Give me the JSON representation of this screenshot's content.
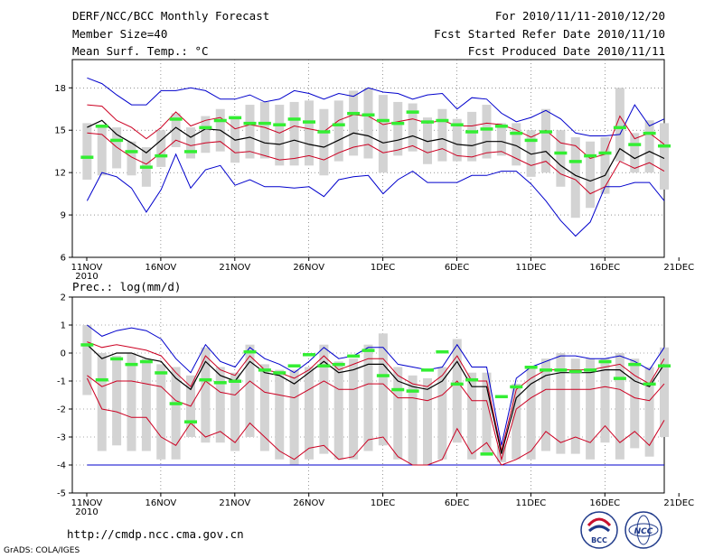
{
  "header": {
    "title": "DERF/NCC/BCC Monthly Forecast",
    "member_size": "Member Size=40",
    "variable": "Mean Surf. Temp.: °C",
    "period": "For 2010/11/11-2010/12/20",
    "started": "Fcst Started Refer Date 2010/11/10",
    "produced": "Fcst Produced Date 2010/11/11"
  },
  "precip_label": "Prec.: log(mm/d)",
  "footer": {
    "url": "http://cmdp.ncc.cma.gov.cn",
    "grads": "GrADS: COLA/IGES",
    "logo_left": "BCC",
    "logo_right": "NCC"
  },
  "colors": {
    "max_min": "#0000cc",
    "percentile": "#cc0022",
    "mean": "#000000",
    "box": "#d3d3d3",
    "obs": "#33ee33"
  },
  "x_ticks": [
    "11NOV",
    "16NOV",
    "21NOV",
    "26NOV",
    "1DEC",
    "6DEC",
    "11DEC",
    "16DEC",
    "21DEC"
  ],
  "x_year": "2010",
  "chart_data": [
    {
      "type": "line",
      "title": "Mean Surf. Temp.: °C",
      "xlabel": "",
      "ylabel": "°C",
      "ylim": [
        6,
        20
      ],
      "yticks": [
        6,
        9,
        12,
        15,
        18
      ],
      "x": [
        1,
        2,
        3,
        4,
        5,
        6,
        7,
        8,
        9,
        10,
        11,
        12,
        13,
        14,
        15,
        16,
        17,
        18,
        19,
        20,
        21,
        22,
        23,
        24,
        25,
        26,
        27,
        28,
        29,
        30,
        31,
        32,
        33,
        34,
        35,
        36,
        37,
        38,
        39,
        40
      ],
      "series": [
        {
          "name": "max",
          "values": [
            18.7,
            18.3,
            17.5,
            16.8,
            16.8,
            17.8,
            17.8,
            18.0,
            17.8,
            17.2,
            17.2,
            17.5,
            17.0,
            17.2,
            17.8,
            17.6,
            17.2,
            17.6,
            17.4,
            18.0,
            17.7,
            17.6,
            17.2,
            17.5,
            17.6,
            16.5,
            17.3,
            17.2,
            16.2,
            15.6,
            15.9,
            16.4,
            15.8,
            14.8,
            14.6,
            14.6,
            14.7,
            16.8,
            15.3,
            15.8
          ]
        },
        {
          "name": "p90",
          "values": [
            16.8,
            16.7,
            15.7,
            15.2,
            14.4,
            15.2,
            16.3,
            15.3,
            15.7,
            15.9,
            15.1,
            15.4,
            15.2,
            14.8,
            15.3,
            15.1,
            14.9,
            15.7,
            16.1,
            16.0,
            15.4,
            15.6,
            15.8,
            15.5,
            15.7,
            15.3,
            15.3,
            15.5,
            15.4,
            15.0,
            14.5,
            15.0,
            14.1,
            13.9,
            13.0,
            13.3,
            16.0,
            14.4,
            14.8,
            14.0
          ]
        },
        {
          "name": "mean",
          "values": [
            15.2,
            15.7,
            14.7,
            14.1,
            13.4,
            14.3,
            15.2,
            14.5,
            15.1,
            15.0,
            14.3,
            14.5,
            14.1,
            14.0,
            14.3,
            14.0,
            13.8,
            14.3,
            14.8,
            14.6,
            14.1,
            14.3,
            14.6,
            14.2,
            14.4,
            14.0,
            13.9,
            14.2,
            14.2,
            13.9,
            13.3,
            13.5,
            12.5,
            11.8,
            11.4,
            11.8,
            13.7,
            13.0,
            13.5,
            13.0
          ]
        },
        {
          "name": "p10",
          "values": [
            14.8,
            14.7,
            13.8,
            13.1,
            12.6,
            13.4,
            14.3,
            13.9,
            14.1,
            14.2,
            13.4,
            13.5,
            13.2,
            12.9,
            13.0,
            13.2,
            12.9,
            13.4,
            13.8,
            14.0,
            13.4,
            13.6,
            13.9,
            13.4,
            13.7,
            13.2,
            13.1,
            13.4,
            13.5,
            13.0,
            12.5,
            12.8,
            11.9,
            11.5,
            10.5,
            11.0,
            12.8,
            12.3,
            12.7,
            12.1
          ]
        },
        {
          "name": "min",
          "values": [
            10.0,
            12.0,
            11.7,
            10.9,
            9.2,
            10.8,
            13.3,
            10.9,
            12.2,
            12.5,
            11.1,
            11.5,
            11.0,
            11.0,
            10.9,
            11.0,
            10.3,
            11.5,
            11.7,
            11.8,
            10.5,
            11.5,
            12.1,
            11.3,
            11.3,
            11.3,
            11.8,
            11.8,
            12.1,
            12.1,
            11.2,
            10.0,
            8.6,
            7.5,
            8.5,
            11.0,
            11.0,
            11.3,
            11.3,
            10.0
          ]
        },
        {
          "name": "box_high",
          "values": [
            15.5,
            15.3,
            15.2,
            14.2,
            13.8,
            15.0,
            16.2,
            15.2,
            16.0,
            16.5,
            16.0,
            16.8,
            17.0,
            16.8,
            17.0,
            17.1,
            16.5,
            17.1,
            17.8,
            18.0,
            17.5,
            17.0,
            16.9,
            15.9,
            16.5,
            15.8,
            16.3,
            16.8,
            15.5,
            15.5,
            15.0,
            16.5,
            15.0,
            14.5,
            14.2,
            14.5,
            18.0,
            14.8,
            15.7,
            15.5
          ]
        },
        {
          "name": "box_low",
          "values": [
            11.5,
            11.8,
            12.3,
            11.8,
            11.0,
            12.4,
            13.8,
            13.0,
            13.4,
            13.5,
            12.7,
            13.0,
            13.0,
            12.5,
            12.5,
            12.5,
            11.8,
            12.8,
            13.2,
            13.0,
            12.0,
            13.2,
            13.5,
            12.6,
            12.8,
            12.8,
            12.8,
            13.0,
            13.2,
            12.5,
            11.7,
            12.0,
            11.0,
            8.8,
            9.5,
            10.5,
            12.8,
            12.0,
            12.0,
            10.8
          ]
        },
        {
          "name": "observed",
          "values": [
            13.1,
            15.3,
            14.3,
            13.5,
            12.4,
            13.2,
            15.8,
            13.5,
            15.2,
            15.7,
            15.9,
            15.5,
            15.5,
            15.4,
            15.8,
            15.6,
            14.9,
            15.4,
            16.2,
            16.1,
            15.7,
            15.5,
            16.3,
            15.6,
            15.7,
            15.4,
            14.9,
            15.1,
            15.3,
            14.8,
            14.3,
            14.9,
            13.4,
            12.8,
            13.2,
            13.4,
            15.2,
            14.0,
            14.8,
            13.9
          ]
        }
      ]
    },
    {
      "type": "line",
      "title": "Prec.: log(mm/d)",
      "xlabel": "",
      "ylabel": "log(mm/d)",
      "ylim": [
        -5,
        2
      ],
      "yticks": [
        -5,
        -4,
        -3,
        -2,
        -1,
        0,
        1,
        2
      ],
      "x": [
        1,
        2,
        3,
        4,
        5,
        6,
        7,
        8,
        9,
        10,
        11,
        12,
        13,
        14,
        15,
        16,
        17,
        18,
        19,
        20,
        21,
        22,
        23,
        24,
        25,
        26,
        27,
        28,
        29,
        30,
        31,
        32,
        33,
        34,
        35,
        36,
        37,
        38,
        39,
        40
      ],
      "series": [
        {
          "name": "max",
          "values": [
            1.0,
            0.6,
            0.8,
            0.9,
            0.8,
            0.5,
            -0.2,
            -0.7,
            0.3,
            -0.3,
            -0.5,
            0.2,
            -0.2,
            -0.4,
            -0.7,
            -0.3,
            0.2,
            -0.2,
            -0.1,
            0.2,
            0.2,
            -0.4,
            -0.5,
            -0.6,
            -0.5,
            0.3,
            -0.5,
            -0.5,
            -3.3,
            -0.9,
            -0.5,
            -0.3,
            -0.1,
            -0.1,
            -0.2,
            -0.2,
            -0.1,
            -0.3,
            -0.6,
            0.2
          ]
        },
        {
          "name": "p90",
          "values": [
            0.4,
            0.2,
            0.3,
            0.2,
            0.1,
            -0.1,
            -0.7,
            -1.2,
            -0.1,
            -0.6,
            -0.8,
            -0.1,
            -0.6,
            -0.7,
            -0.9,
            -0.6,
            -0.1,
            -0.6,
            -0.4,
            -0.2,
            -0.2,
            -0.8,
            -1.1,
            -1.2,
            -0.8,
            -0.1,
            -1.0,
            -1.0,
            -3.5,
            -1.3,
            -0.9,
            -0.6,
            -0.6,
            -0.6,
            -0.6,
            -0.5,
            -0.4,
            -0.8,
            -1.1,
            -0.2
          ]
        },
        {
          "name": "mean",
          "values": [
            0.3,
            -0.2,
            0.0,
            0.0,
            -0.2,
            -0.3,
            -0.9,
            -1.3,
            -0.3,
            -0.8,
            -1.0,
            -0.3,
            -0.7,
            -0.8,
            -1.1,
            -0.7,
            -0.3,
            -0.7,
            -0.6,
            -0.4,
            -0.4,
            -1.0,
            -1.2,
            -1.3,
            -1.0,
            -0.3,
            -1.2,
            -1.2,
            -3.6,
            -1.6,
            -1.1,
            -0.8,
            -0.7,
            -0.7,
            -0.7,
            -0.6,
            -0.6,
            -1.0,
            -1.2,
            -0.4
          ]
        },
        {
          "name": "p10",
          "values": [
            -0.8,
            -1.2,
            -1.0,
            -1.0,
            -1.1,
            -1.2,
            -1.7,
            -1.9,
            -1.0,
            -1.4,
            -1.5,
            -1.0,
            -1.4,
            -1.5,
            -1.6,
            -1.3,
            -1.0,
            -1.3,
            -1.3,
            -1.1,
            -1.1,
            -1.6,
            -1.6,
            -1.7,
            -1.5,
            -1.0,
            -1.7,
            -1.7,
            -3.8,
            -2.0,
            -1.6,
            -1.3,
            -1.3,
            -1.3,
            -1.3,
            -1.2,
            -1.3,
            -1.6,
            -1.7,
            -1.1
          ]
        },
        {
          "name": "min",
          "values": [
            -0.9,
            -2.0,
            -2.1,
            -2.3,
            -2.3,
            -3.0,
            -3.3,
            -2.5,
            -3.0,
            -2.8,
            -3.2,
            -2.5,
            -3.0,
            -3.5,
            -3.8,
            -3.4,
            -3.3,
            -3.8,
            -3.7,
            -3.1,
            -3.0,
            -3.7,
            -4.0,
            -4.0,
            -3.8,
            -2.7,
            -3.6,
            -3.2,
            -4.0,
            -3.8,
            -3.5,
            -2.8,
            -3.2,
            -3.0,
            -3.2,
            -2.6,
            -3.2,
            -2.8,
            -3.3,
            -2.4
          ]
        },
        {
          "name": "lower",
          "values": [
            -4,
            -4,
            -4,
            -4,
            -4,
            -4,
            -4,
            -4,
            -4,
            -4,
            -4,
            -4,
            -4,
            -4,
            -4,
            -4,
            -4,
            -4,
            -4,
            -4,
            -4,
            -4,
            -4,
            -4,
            -4,
            -4,
            -4,
            -4,
            -4,
            -4,
            -4,
            -4,
            -4,
            -4,
            -4,
            -4,
            -4,
            -4,
            -4,
            -4
          ]
        },
        {
          "name": "box_high",
          "values": [
            1.0,
            0.0,
            -0.1,
            0.0,
            -0.2,
            -0.4,
            -0.5,
            -0.8,
            0.2,
            -0.5,
            -0.7,
            0.3,
            -0.4,
            -0.6,
            -0.6,
            -0.5,
            0.3,
            -0.3,
            -0.2,
            0.3,
            0.7,
            -0.5,
            -0.8,
            -0.9,
            -0.5,
            0.5,
            -0.7,
            -0.7,
            -3.3,
            -1.1,
            -0.5,
            -0.2,
            0.0,
            -0.2,
            -0.2,
            -0.2,
            0.0,
            -0.2,
            -0.5,
            0.2
          ]
        },
        {
          "name": "box_low",
          "values": [
            -1.5,
            -3.5,
            -3.3,
            -3.5,
            -3.5,
            -3.8,
            -3.8,
            -3.0,
            -3.2,
            -3.2,
            -3.5,
            -3.0,
            -3.5,
            -3.8,
            -4.0,
            -3.8,
            -3.6,
            -3.8,
            -3.8,
            -3.5,
            -3.3,
            -3.8,
            -4.0,
            -4.0,
            -3.8,
            -3.2,
            -3.8,
            -3.6,
            -3.9,
            -3.8,
            -3.8,
            -3.5,
            -3.6,
            -3.6,
            -3.8,
            -3.2,
            -3.8,
            -3.4,
            -3.7,
            -3.0
          ]
        },
        {
          "name": "observed",
          "values": [
            0.3,
            -0.95,
            -0.2,
            -0.4,
            -0.3,
            -0.7,
            -1.8,
            -2.45,
            -0.95,
            -1.05,
            -1.0,
            0.05,
            -0.6,
            -0.7,
            -0.45,
            -0.05,
            -0.45,
            -0.4,
            -0.1,
            0.1,
            -0.8,
            -1.3,
            -1.35,
            -0.6,
            0.05,
            -1.1,
            -0.95,
            -3.6,
            -1.55,
            -1.2,
            -0.5,
            -0.6,
            -0.6,
            -0.65,
            -0.6,
            -0.3,
            -0.9,
            -0.4,
            -1.1,
            -0.45
          ]
        }
      ]
    }
  ]
}
